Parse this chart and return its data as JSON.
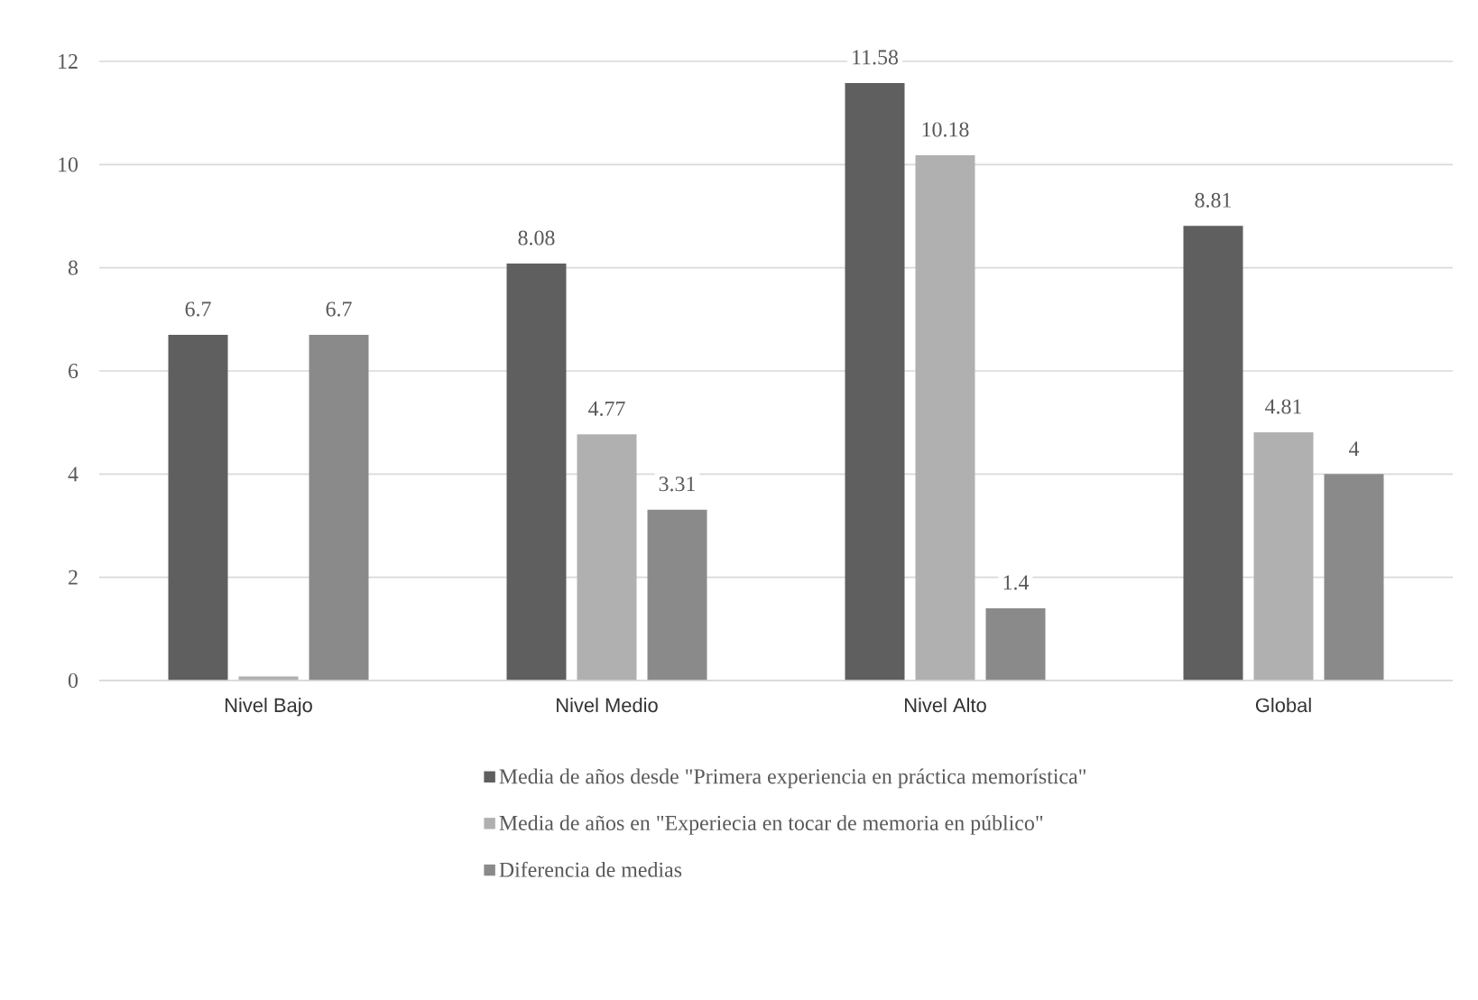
{
  "chart_data": {
    "type": "bar",
    "categories": [
      "Nivel Bajo",
      "Nivel Medio",
      "Nivel Alto",
      "Global"
    ],
    "series": [
      {
        "name": "Media de años desde \"Primera experiencia en práctica memorística\"",
        "color": "#5f5f5f",
        "values": [
          6.7,
          8.08,
          11.58,
          8.81
        ],
        "value_labels": [
          "6.7",
          "8.08",
          "11.58",
          "8.81"
        ]
      },
      {
        "name": "Media de años en \"Experiecia en tocar de memoria en público\"",
        "color": "#b0b0b0",
        "values": [
          0.08,
          4.77,
          10.18,
          4.81
        ],
        "value_labels": [
          null,
          "4.77",
          "10.18",
          "4.81"
        ]
      },
      {
        "name": "Diferencia de medias",
        "color": "#8a8a8a",
        "values": [
          6.7,
          3.31,
          1.4,
          4
        ],
        "value_labels": [
          "6.7",
          "3.31",
          "1.4",
          "4"
        ]
      }
    ],
    "ylim": [
      0,
      12
    ],
    "yticks": [
      0,
      2,
      4,
      6,
      8,
      10,
      12
    ],
    "grid": "y",
    "legend": "bottom"
  }
}
